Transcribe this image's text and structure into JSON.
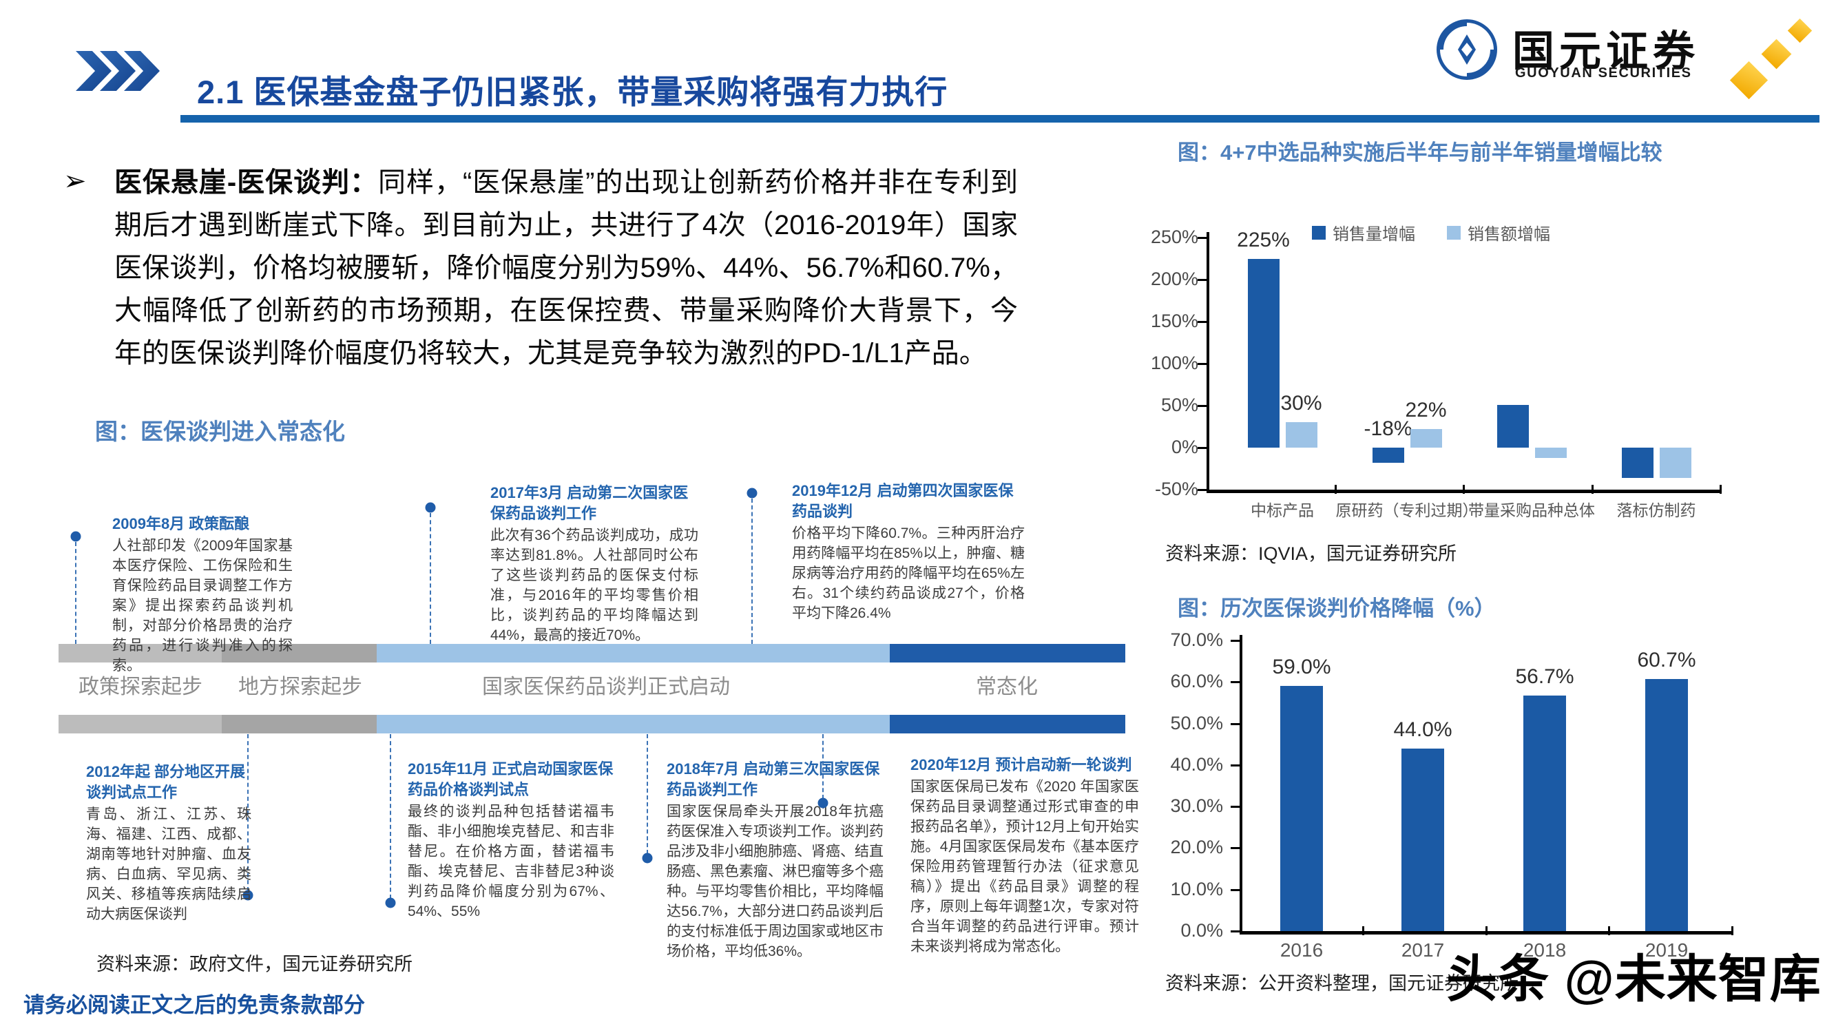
{
  "header": {
    "title": "2.1 医保基金盘子仍旧紧张，带量采购将强有力执行",
    "logo_cn": "国元证券",
    "logo_en": "GUOYUAN SECURITIES"
  },
  "bullet": {
    "marker": "➢",
    "lead": "医保悬崖-医保谈判：",
    "body": "同样，“医保悬崖”的出现让创新药价格并非在专利到期后才遇到断崖式下降。到目前为止，共进行了4次（2016-2019年）国家医保谈判，价格均被腰斩，降价幅度分别为59%、44%、56.7%和60.7%，大幅降低了创新药的市场预期，在医保控费、带量采购降价大背景下，今年的医保谈判降价幅度仍将较大，尤其是竞争较为激烈的PD-1/L1产品。"
  },
  "timeline": {
    "title": "图：医保谈判进入常态化",
    "stages": [
      {
        "label": "政策探索起步",
        "color": "#bcbcbc"
      },
      {
        "label": "地方探索起步",
        "color": "#a5a5a5"
      },
      {
        "label": "国家医保药品谈判正式启动",
        "color": "#9dc3e6"
      },
      {
        "label": "常态化",
        "color": "#1f5ca9"
      }
    ],
    "top_milestones": [
      {
        "head": "2009年8月  政策酝酿",
        "body": "人社部印发《2009年国家基本医疗保险、工伤保险和生育保险药品目录调整工作方案》提出探索药品谈判机制，对部分价格昂贵的治疗药品，进行谈判准入的探索。"
      },
      {
        "head": "2017年3月  启动第二次国家医保药品谈判工作",
        "body": "此次有36个药品谈判成功，成功率达到81.8%。人社部同时公布了这些谈判药品的医保支付标准，与2016年的平均零售价相比，谈判药品的平均降幅达到44%，最高的接近70%。"
      },
      {
        "head": "2019年12月  启动第四次国家医保药品谈判",
        "body": "价格平均下降60.7%。三种丙肝治疗用药降幅平均在85%以上，肿瘤、糖尿病等治疗用药的降幅平均在65%左右。31个续约药品谈成27个，价格平均下降26.4%"
      }
    ],
    "bottom_milestones": [
      {
        "head": "2012年起  部分地区开展谈判试点工作",
        "body": "青岛、浙江、江苏、珠海、福建、江西、成都、湖南等地针对肿瘤、血友病、白血病、罕见病、类风关、移植等疾病陆续启动大病医保谈判"
      },
      {
        "head": "2015年11月  正式启动国家医保药品价格谈判试点",
        "body": "最终的谈判品种包括替诺福韦酯、非小细胞埃克替尼、和吉非替尼。在价格方面，替诺福韦酯、埃克替尼、吉非替尼3种谈判药品降价幅度分别为67%、54%、55%"
      },
      {
        "head": "2018年7月  启动第三次国家医保药品谈判工作",
        "body": "国家医保局牵头开展2018年抗癌药医保准入专项谈判工作。谈判药品涉及非小细胞肺癌、肾癌、结直肠癌、黑色素瘤、淋巴瘤等多个癌种。与平均零售价相比，平均降幅达56.7%，大部分进口药品谈判后的支付标准低于周边国家或地区市场价格，平均低36%。"
      },
      {
        "head": "2020年12月  预计启动新一轮谈判",
        "body": "国家医保局已发布《2020 年国家医保药品目录调整通过形式审查的申报药品名单》，预计12月上旬开始实施。4月国家医保局发布《基本医疗保险用药管理暂行办法（征求意见稿）》提出《药品目录》调整的程序，原则上每年调整1次，专家对符合当年调整的药品进行评审。预计未来谈判将成为常态化。"
      }
    ],
    "source": "资料来源：政府文件，国元证券研究所"
  },
  "chart_data": [
    {
      "type": "bar",
      "title": "图：4+7中选品种实施后半年与前半年销量增幅比较",
      "categories": [
        "中标产品",
        "原研药（专利过期）",
        "带量采购品种总体",
        "落标仿制药"
      ],
      "series": [
        {
          "name": "销售量增幅",
          "color": "#1b5aa5",
          "values": [
            225,
            -18,
            51,
            -36
          ],
          "labels": [
            "225%",
            "-18%",
            null,
            null
          ]
        },
        {
          "name": "销售额增幅",
          "color": "#9dc3e6",
          "values": [
            30,
            22,
            -12,
            -36
          ],
          "labels": [
            "30%",
            "22%",
            null,
            null
          ]
        }
      ],
      "y_ticks": [
        {
          "v": 250,
          "label": "250%"
        },
        {
          "v": 200,
          "label": "200%"
        },
        {
          "v": 150,
          "label": "150%"
        },
        {
          "v": 100,
          "label": "100%"
        },
        {
          "v": 50,
          "label": "50%"
        },
        {
          "v": 0,
          "label": "0%"
        },
        {
          "v": -50,
          "label": "-50%"
        }
      ],
      "ylim": [
        -50,
        250
      ],
      "grid": false,
      "legend_position": "top",
      "source": "资料来源：IQVIA，国元证券研究所"
    },
    {
      "type": "bar",
      "title": "图：历次医保谈判价格降幅（%）",
      "categories": [
        "2016",
        "2017",
        "2018",
        "2019"
      ],
      "series": [
        {
          "color": "#1b5aa5",
          "values": [
            59.0,
            44.0,
            56.7,
            60.7
          ],
          "labels": [
            "59.0%",
            "44.0%",
            "56.7%",
            "60.7%"
          ]
        }
      ],
      "y_ticks": [
        {
          "v": 70,
          "label": "70.0%"
        },
        {
          "v": 60,
          "label": "60.0%"
        },
        {
          "v": 50,
          "label": "50.0%"
        },
        {
          "v": 40,
          "label": "40.0%"
        },
        {
          "v": 30,
          "label": "30.0%"
        },
        {
          "v": 20,
          "label": "20.0%"
        },
        {
          "v": 10,
          "label": "10.0%"
        },
        {
          "v": 0,
          "label": "0.0%"
        }
      ],
      "ylim": [
        0,
        70
      ],
      "grid": false,
      "source": "资料来源：公开资料整理，国元证券研究所"
    }
  ],
  "footer": {
    "disclaimer": "请务必阅读正文之后的免责条款部分"
  },
  "watermark": "头条 @未来智库"
}
